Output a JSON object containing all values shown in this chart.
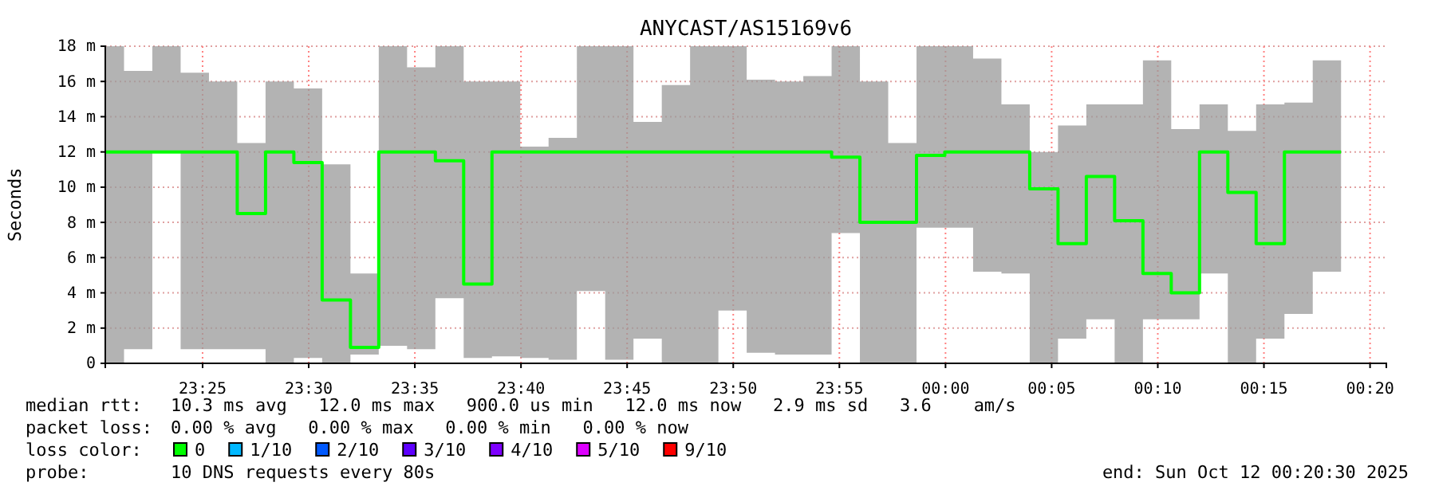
{
  "chart_data": {
    "type": "step",
    "title": "ANYCAST/AS15169v6",
    "ylabel": "Seconds",
    "xlim": [
      "2025-10-11T23:20:25",
      "2025-10-12T00:20:46"
    ],
    "ylim": [
      0,
      18
    ],
    "xticks": [
      {
        "value": "2025-10-11T23:25",
        "label": "23:25"
      },
      {
        "value": "2025-10-11T23:30",
        "label": "23:30"
      },
      {
        "value": "2025-10-11T23:35",
        "label": "23:35"
      },
      {
        "value": "2025-10-11T23:40",
        "label": "23:40"
      },
      {
        "value": "2025-10-11T23:45",
        "label": "23:45"
      },
      {
        "value": "2025-10-11T23:50",
        "label": "23:50"
      },
      {
        "value": "2025-10-11T23:55",
        "label": "23:55"
      },
      {
        "value": "2025-10-12T00:00",
        "label": "00:00"
      },
      {
        "value": "2025-10-12T00:05",
        "label": "00:05"
      },
      {
        "value": "2025-10-12T00:10",
        "label": "00:10"
      },
      {
        "value": "2025-10-12T00:15",
        "label": "00:15"
      },
      {
        "value": "2025-10-12T00:20",
        "label": "00:20"
      }
    ],
    "yticks": [
      0,
      {
        "value": 2,
        "label": "2 m"
      },
      {
        "value": 4,
        "label": "4 m"
      },
      {
        "value": 6,
        "label": "6 m"
      },
      {
        "value": 8,
        "label": "8 m"
      },
      {
        "value": 10,
        "label": "10 m"
      },
      {
        "value": 12,
        "label": "12 m"
      },
      {
        "value": 14,
        "label": "14 m"
      },
      {
        "value": 16,
        "label": "16 m"
      },
      {
        "value": 18,
        "label": "18 m"
      }
    ],
    "grid": true,
    "x": [
      "2025-10-11T23:20:25",
      "2025-10-11T23:21:18",
      "2025-10-11T23:22:38",
      "2025-10-11T23:23:58",
      "2025-10-11T23:25:18",
      "2025-10-11T23:26:38",
      "2025-10-11T23:27:58",
      "2025-10-11T23:29:18",
      "2025-10-11T23:30:38",
      "2025-10-11T23:31:58",
      "2025-10-11T23:33:18",
      "2025-10-11T23:34:38",
      "2025-10-11T23:35:58",
      "2025-10-11T23:37:18",
      "2025-10-11T23:38:38",
      "2025-10-11T23:39:58",
      "2025-10-11T23:41:18",
      "2025-10-11T23:42:38",
      "2025-10-11T23:43:58",
      "2025-10-11T23:45:18",
      "2025-10-11T23:46:38",
      "2025-10-11T23:47:58",
      "2025-10-11T23:49:18",
      "2025-10-11T23:50:38",
      "2025-10-11T23:51:58",
      "2025-10-11T23:53:18",
      "2025-10-11T23:54:38",
      "2025-10-11T23:55:58",
      "2025-10-11T23:57:18",
      "2025-10-11T23:58:38",
      "2025-10-11T23:59:58",
      "2025-10-12T00:01:18",
      "2025-10-12T00:02:38",
      "2025-10-12T00:03:58",
      "2025-10-12T00:05:18",
      "2025-10-12T00:06:38",
      "2025-10-12T00:07:58",
      "2025-10-12T00:09:18",
      "2025-10-12T00:10:38",
      "2025-10-12T00:11:58",
      "2025-10-12T00:13:18",
      "2025-10-12T00:14:38",
      "2025-10-12T00:15:58",
      "2025-10-12T00:17:18",
      "2025-10-12T00:18:38"
    ],
    "series": [
      {
        "color": "#00ff00",
        "values": [
          12,
          12,
          12,
          12,
          12,
          8.5,
          12,
          11.4,
          3.6,
          0.9,
          12,
          12,
          11.5,
          4.5,
          12,
          12,
          12,
          12,
          12,
          12,
          12,
          12,
          12,
          12,
          12,
          12,
          11.7,
          8.0,
          8.0,
          11.8,
          12,
          12,
          12,
          9.9,
          6.8,
          10.6,
          8.1,
          5.1,
          4.0,
          12,
          9.7,
          6.8,
          12,
          12,
          12
        ],
        "lower": [
          0,
          0.8,
          12,
          0.8,
          0.8,
          0.8,
          0,
          0.3,
          0,
          0.5,
          1,
          0.8,
          3.7,
          0.3,
          0.4,
          0.3,
          0.2,
          4.1,
          0.2,
          1.4,
          0,
          0,
          3.0,
          0.6,
          0.5,
          0.5,
          7.4,
          0,
          0,
          7.7,
          7.7,
          5.2,
          5.1,
          0,
          1.4,
          2.5,
          0,
          2.5,
          2.5,
          5.1,
          0,
          1.4,
          2.8,
          5.2,
          5.2
        ],
        "upper": [
          18,
          16.6,
          18,
          16.5,
          16,
          12.5,
          16,
          15.6,
          11.3,
          5.1,
          18,
          16.8,
          18,
          16,
          16,
          12.3,
          12.8,
          18,
          18,
          13.7,
          15.8,
          18,
          18,
          16.1,
          16,
          16.3,
          18,
          16,
          12.5,
          18,
          18,
          17.3,
          14.7,
          12,
          13.5,
          14.7,
          14.7,
          17.2,
          13.3,
          14.7,
          13.2,
          14.7,
          14.8,
          17.2,
          17.2
        ]
      }
    ],
    "annotations": [
      "median rtt:",
      "10.3 ms avg   12.0 ms max   900.0 us min   12.0 ms now   2.9 ms sd   3.6    am/s",
      "packet loss:",
      "0.00 % avg   0.00 % max   0.00 % min   0.00 % now",
      "loss color:",
      "0",
      "1/10",
      "2/10",
      "3/10",
      "4/10",
      "5/10",
      "9/10",
      "probe:",
      "10 DNS requests every 80s",
      "end: Sun Oct 12 00:20:30 2025"
    ]
  }
}
